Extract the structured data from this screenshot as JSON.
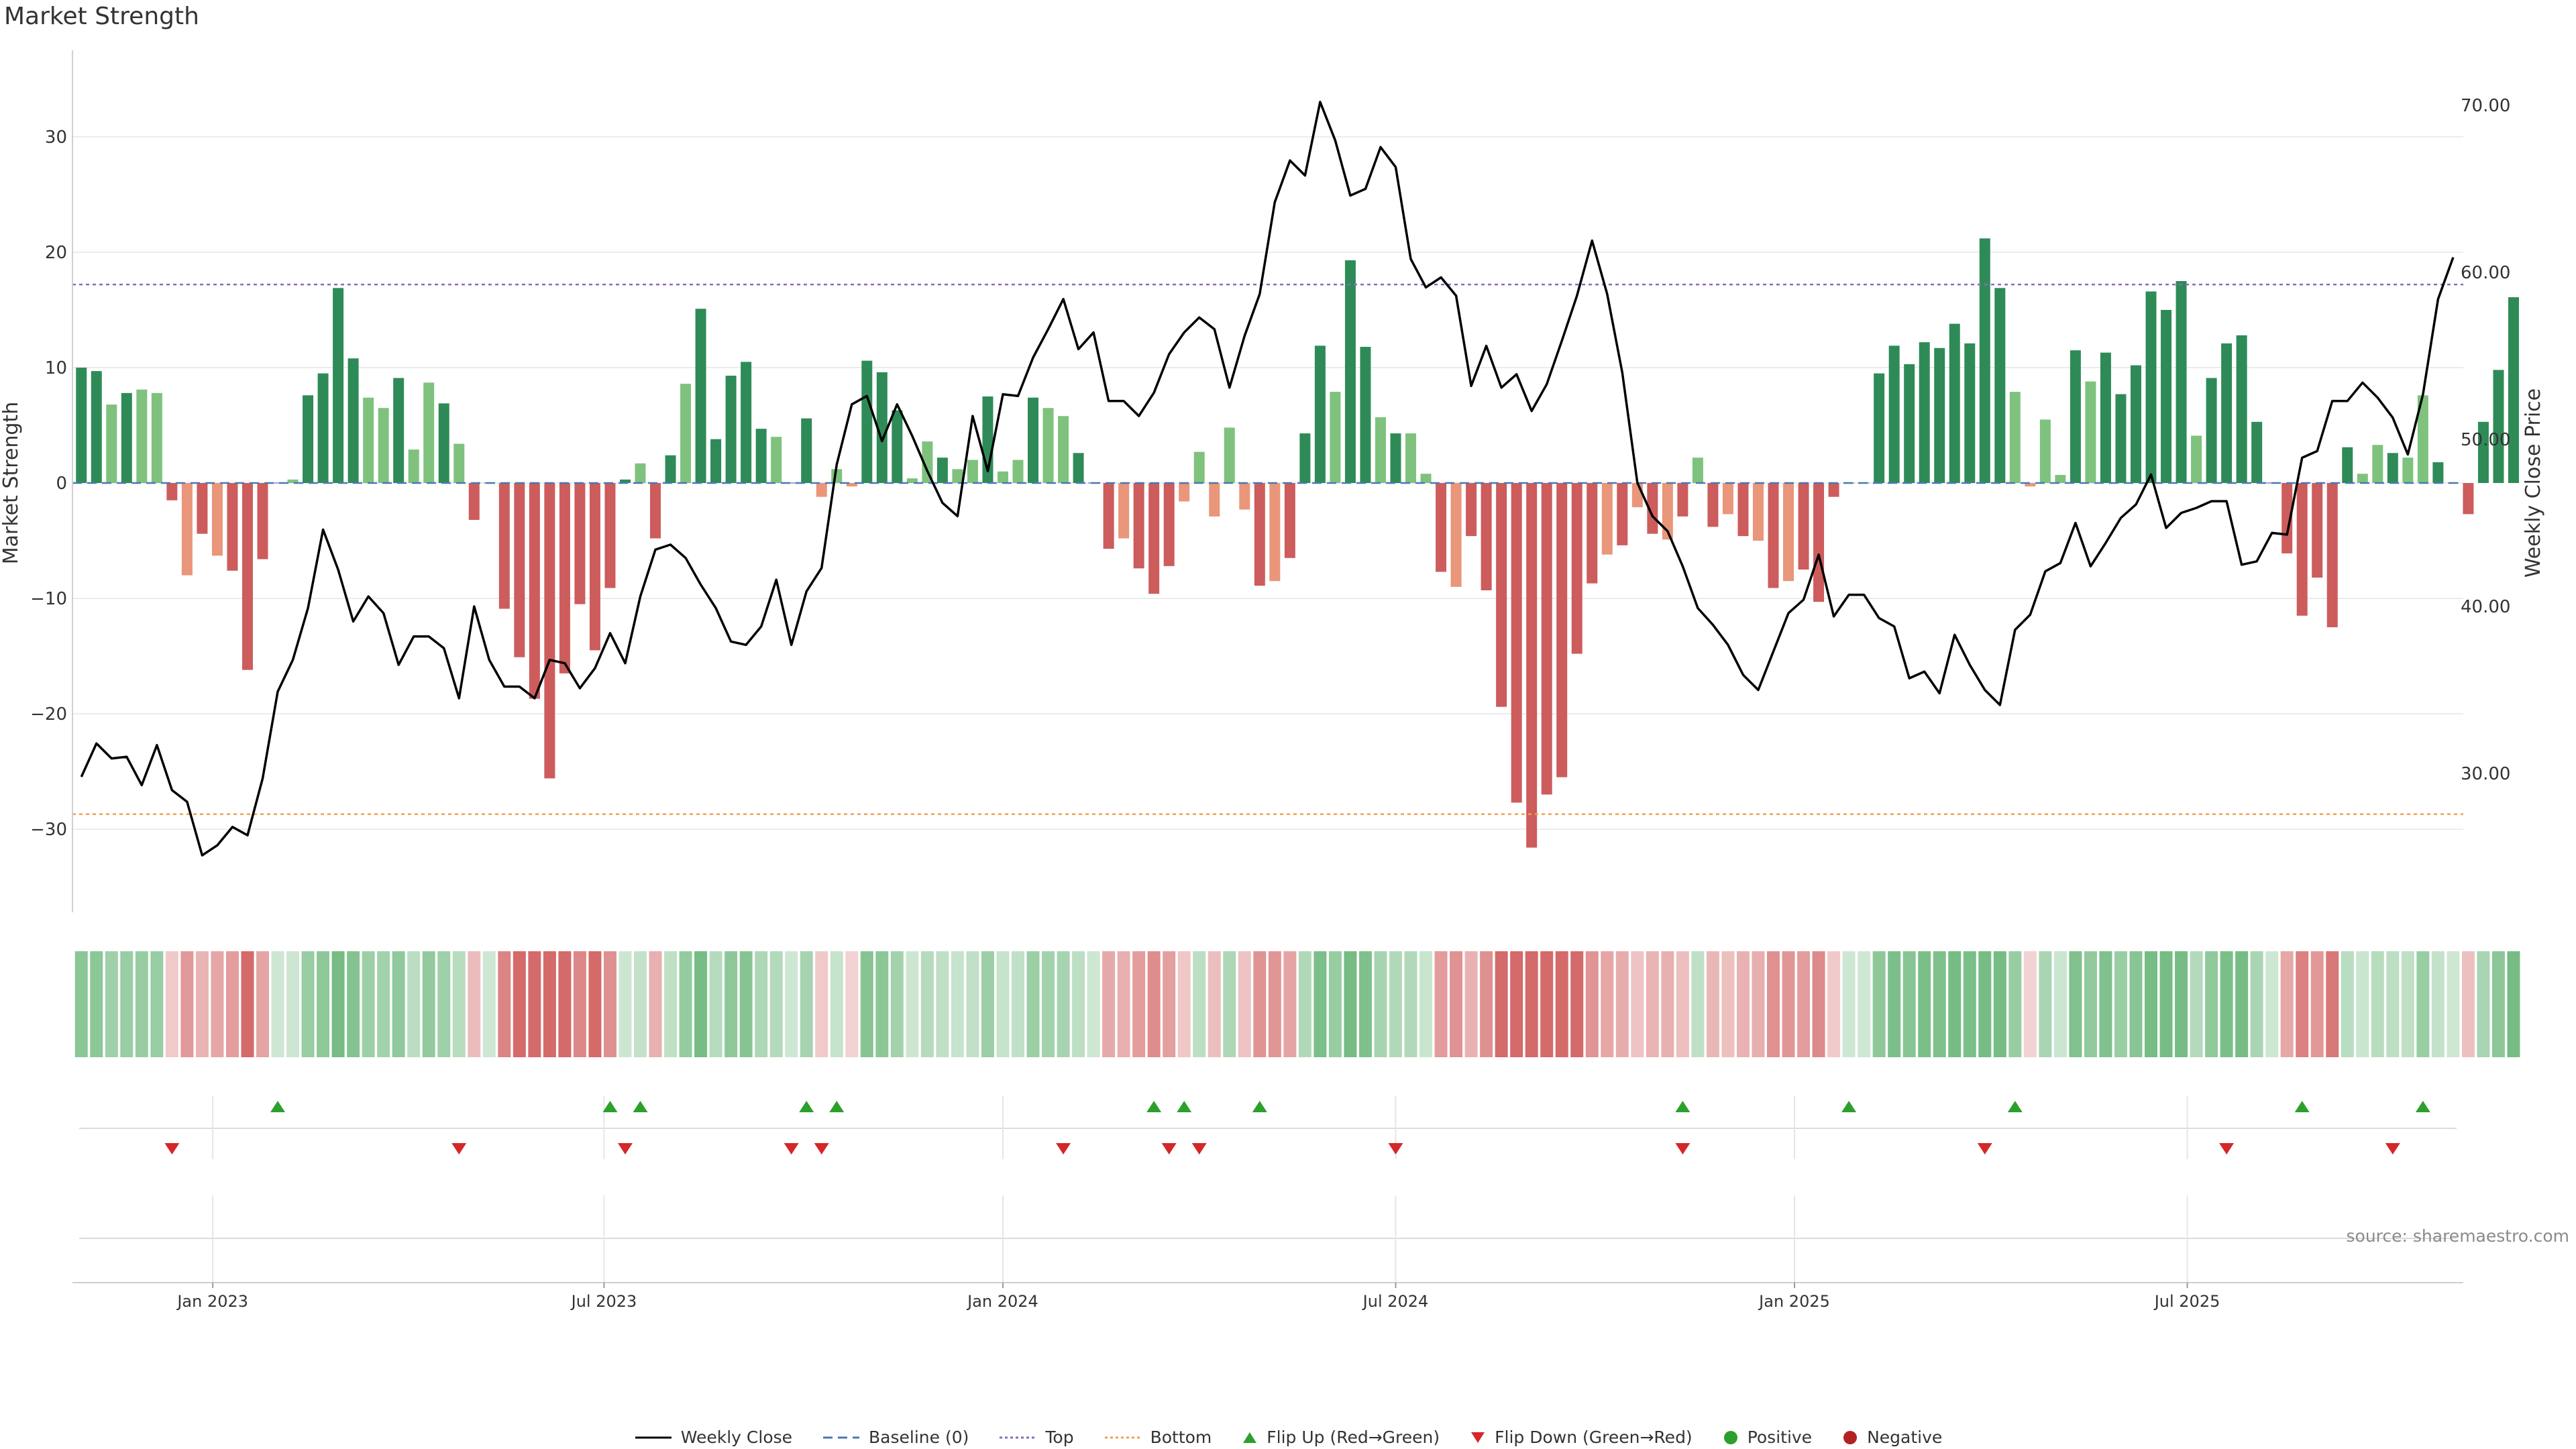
{
  "title": "Market Strength",
  "source": "source: sharemaestro.com",
  "colors": {
    "pos_strong": "#2e8b57",
    "pos_light": "#7ec27e",
    "neg_strong": "#cd5c5c",
    "neg_light": "#e9967a",
    "line": "#000000",
    "baseline": "#4a78b4",
    "top": "#8a6bbf",
    "bottom": "#f0a050",
    "flip_up": "#2ca02c",
    "flip_down": "#d62728",
    "positive": "#2ca02c",
    "negative": "#b22222"
  },
  "chart_data": {
    "type": "bar",
    "ylabel_left": "Market Strength",
    "ylabel_right": "Weekly Close Price",
    "y_left_ticks": [
      "30",
      "20",
      "10",
      "0",
      "−10",
      "−20",
      "−30"
    ],
    "y_left_range": [
      -37,
      37
    ],
    "y_right_ticks": [
      "70.00",
      "60.00",
      "50.00",
      "40.00",
      "30.00"
    ],
    "y_right_range": [
      22,
      73
    ],
    "x_tick_labels": [
      "Jan 2023",
      "Jul 2023",
      "Jan 2024",
      "Jul 2024",
      "Jan 2025",
      "Jul 2025"
    ],
    "x_tick_week_index": [
      8.7,
      34.6,
      61.0,
      87.0,
      113.4,
      139.4
    ],
    "top_threshold": 17.2,
    "bottom_threshold": -28.7,
    "baseline": 0,
    "strength": [
      10,
      9.7,
      6.8,
      7.8,
      8.1,
      7.8,
      -1.5,
      -8,
      -4.4,
      -6.3,
      -7.6,
      -16.2,
      -6.6,
      0,
      0.3,
      7.6,
      9.5,
      16.9,
      10.8,
      7.4,
      6.5,
      9.1,
      2.9,
      8.7,
      6.9,
      3.4,
      -3.2,
      0,
      -10.9,
      -15.1,
      -18.7,
      -25.6,
      -16.5,
      -10.5,
      -14.5,
      -9.1,
      0.3,
      1.7,
      -4.8,
      2.4,
      8.6,
      15.1,
      3.8,
      9.3,
      10.5,
      4.7,
      4,
      0,
      5.6,
      -1.2,
      1.2,
      -0.3,
      10.6,
      9.6,
      6.3,
      0.4,
      3.6,
      2.2,
      1.2,
      2,
      7.5,
      1,
      2,
      7.4,
      6.5,
      5.8,
      2.6,
      0,
      -5.7,
      -4.8,
      -7.4,
      -9.6,
      -7.2,
      -1.6,
      2.7,
      -2.9,
      4.8,
      -2.3,
      -8.9,
      -8.5,
      -6.5,
      4.3,
      11.9,
      7.9,
      19.3,
      11.8,
      5.7,
      4.3,
      4.3,
      0.8,
      -7.7,
      -9,
      -4.6,
      -9.3,
      -19.4,
      -27.7,
      -31.6,
      -27,
      -25.5,
      -14.8,
      -8.7,
      -6.2,
      -5.4,
      -2.1,
      -4.4,
      -4.9,
      -2.9,
      2.2,
      -3.8,
      -2.7,
      -4.6,
      -5,
      -9.1,
      -8.5,
      -7.5,
      -10.3,
      -1.2,
      0,
      0,
      9.5,
      11.9,
      10.3,
      12.2,
      11.7,
      13.8,
      12.1,
      21.2,
      16.9,
      7.9,
      -0.3,
      5.5,
      0.7,
      11.5,
      8.8,
      11.3,
      7.7,
      10.2,
      16.6,
      15,
      17.5,
      4.1,
      9.1,
      12.1,
      12.8,
      5.3,
      0,
      -6.1,
      -11.5,
      -8.2,
      -12.5,
      3.1,
      0.8,
      3.3,
      2.6,
      2.2,
      7.6,
      1.8,
      0,
      -2.7,
      5.3,
      9.8,
      16.1
    ],
    "weekly_close": [
      29.8,
      31.8,
      30.9,
      31,
      29.3,
      31.7,
      29,
      28.3,
      25.1,
      25.7,
      26.8,
      26.3,
      29.7,
      34.9,
      36.8,
      39.9,
      44.6,
      42.2,
      39.1,
      40.6,
      39.6,
      36.5,
      38.2,
      38.2,
      37.5,
      34.5,
      40,
      36.8,
      35.2,
      35.2,
      34.5,
      36.8,
      36.6,
      35.1,
      36.3,
      38.4,
      36.6,
      40.6,
      43.4,
      43.7,
      42.9,
      41.3,
      39.9,
      37.9,
      37.7,
      38.8,
      41.6,
      37.7,
      40.9,
      42.3,
      48.5,
      52.1,
      52.6,
      49.9,
      52.1,
      50.2,
      48.1,
      46.2,
      45.4,
      51.4,
      48.1,
      52.7,
      52.6,
      54.9,
      56.6,
      58.4,
      55.4,
      56.4,
      52.3,
      52.3,
      51.4,
      52.8,
      55.1,
      56.4,
      57.3,
      56.6,
      53.1,
      56.2,
      58.7,
      64.2,
      66.7,
      65.8,
      70.2,
      67.9,
      64.6,
      65,
      67.5,
      66.3,
      60.8,
      59.1,
      59.7,
      58.6,
      53.2,
      55.6,
      53.1,
      53.9,
      51.7,
      53.3,
      55.9,
      58.6,
      61.9,
      58.7,
      54,
      47.4,
      45.4,
      44.5,
      42.4,
      39.9,
      38.9,
      37.7,
      35.9,
      35,
      37.3,
      39.6,
      40.4,
      43.1,
      39.4,
      40.7,
      40.7,
      39.3,
      38.8,
      35.7,
      36.1,
      34.8,
      38.3,
      36.5,
      35,
      34.1,
      38.6,
      39.5,
      42.1,
      42.6,
      45,
      42.4,
      43.8,
      45.3,
      46.1,
      47.9,
      44.7,
      45.6,
      45.9,
      46.3,
      46.3,
      42.5,
      42.7,
      44.4,
      44.3,
      48.9,
      49.3,
      52.3,
      52.3,
      53.4,
      52.5,
      51.3,
      49.1,
      52.7,
      58.4,
      60.9
    ],
    "heat_strength": [
      10,
      9.7,
      6.8,
      7.8,
      8.1,
      7.8,
      -1.5,
      -8,
      -4.4,
      -6.3,
      -7.6,
      -16.2,
      -6.6,
      0,
      0.3,
      7.6,
      9.5,
      16.9,
      10.8,
      7.4,
      6.5,
      9.1,
      2.9,
      8.7,
      6.9,
      3.4,
      -3.2,
      0,
      -10.9,
      -15.1,
      -18.7,
      -25.6,
      -16.5,
      -10.5,
      -14.5,
      -9.1,
      0.3,
      1.7,
      -4.8,
      2.4,
      8.6,
      15.1,
      3.8,
      9.3,
      10.5,
      4.7,
      4,
      0,
      5.6,
      -1.2,
      1.2,
      -0.3,
      10.6,
      9.6,
      6.3,
      0.4,
      3.6,
      2.2,
      1.2,
      2,
      7.5,
      1,
      2,
      7.4,
      6.5,
      5.8,
      2.6,
      0,
      -5.7,
      -4.8,
      -7.4,
      -9.6,
      -7.2,
      -1.6,
      2.7,
      -2.9,
      4.8,
      -2.3,
      -8.9,
      -8.5,
      -6.5,
      4.3,
      11.9,
      7.9,
      19.3,
      11.8,
      5.7,
      4.3,
      4.3,
      0.8,
      -7.7,
      -9,
      -4.6,
      -9.3,
      -19.4,
      -27.7,
      -31.6,
      -27,
      -25.5,
      -14.8,
      -8.7,
      -6.2,
      -5.4,
      -2.1,
      -4.4,
      -4.9,
      -2.9,
      2.2,
      -3.8,
      -2.7,
      -4.6,
      -5,
      -9.1,
      -8.5,
      -7.5,
      -10.3,
      -1.2,
      0,
      0,
      9.5,
      11.9,
      10.3,
      12.2,
      11.7,
      13.8,
      12.1,
      21.2,
      16.9,
      7.9,
      -0.3,
      5.5,
      0.7,
      11.5,
      8.8,
      11.3,
      7.7,
      10.2,
      16.6,
      15,
      17.5,
      4.1,
      9.1,
      12.1,
      12.8,
      5.3,
      0,
      -6.1,
      -11.5,
      -8.2,
      -12.5,
      3.1,
      0.8,
      3.3,
      2.6,
      2.2,
      7.6,
      1.8,
      0,
      -2.7,
      5.3,
      9.8,
      16.1
    ],
    "flip_up_weeks": [
      13,
      35,
      37,
      48,
      50,
      71,
      73,
      78,
      106,
      117,
      128,
      147,
      155
    ],
    "flip_down_weeks": [
      6,
      25,
      36,
      47,
      49,
      65,
      72,
      74,
      87,
      106,
      126,
      142,
      153
    ]
  },
  "legend": [
    {
      "label": "Weekly Close",
      "icon": "solid-line"
    },
    {
      "label": "Baseline (0)",
      "icon": "dashed-line"
    },
    {
      "label": "Top",
      "icon": "dotted-line"
    },
    {
      "label": "Bottom",
      "icon": "dotted-line"
    },
    {
      "label": "Flip Up (Red→Green)",
      "icon": "triangle-up"
    },
    {
      "label": "Flip Down (Green→Red)",
      "icon": "triangle-down"
    },
    {
      "label": "Positive",
      "icon": "circle"
    },
    {
      "label": "Negative",
      "icon": "circle"
    }
  ]
}
